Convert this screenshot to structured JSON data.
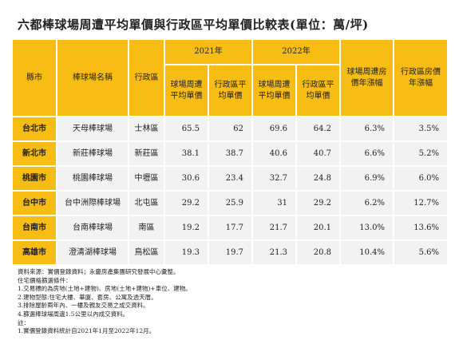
{
  "title": "六都棒球場周遭平均單價與行政區平均單價比較表(單位：萬/坪)",
  "table": {
    "header": {
      "city": "縣市",
      "stadium": "棒球場名稱",
      "district": "行政區",
      "year1": "2021年",
      "year2": "2022年",
      "stadium_growth": "球場周遭房價年漲幅",
      "district_growth": "行政區房價年漲幅",
      "sub": [
        "球場周遭平均單價",
        "行政區平均單價",
        "球場周遭平均單價",
        "行政區平均單價"
      ]
    },
    "rows": [
      [
        "台北市",
        "天母棒球場",
        "士林區",
        "65.5",
        "62",
        "69.6",
        "64.2",
        "6.3%",
        "3.5%"
      ],
      [
        "新北市",
        "新莊棒球場",
        "新莊區",
        "38.1",
        "38.7",
        "40.6",
        "40.7",
        "6.6%",
        "5.2%"
      ],
      [
        "桃園市",
        "桃園棒球場",
        "中壢區",
        "30.6",
        "23.4",
        "32.7",
        "24.8",
        "6.9%",
        "6.0%"
      ],
      [
        "台中市",
        "台中洲際棒球場",
        "北屯區",
        "29.2",
        "25.9",
        "31",
        "29.2",
        "6.2%",
        "12.7%"
      ],
      [
        "台南市",
        "台南棒球場",
        "南區",
        "19.2",
        "17.7",
        "21.7",
        "20.1",
        "13.0%",
        "13.6%"
      ],
      [
        "高雄市",
        "澄清湖棒球場",
        "鳥松區",
        "19.3",
        "19.7",
        "21.3",
        "20.8",
        "10.4%",
        "5.6%"
      ]
    ]
  },
  "notes": [
    "資料來源：實價登錄資料；永慶房產集團研究發展中心彙整。",
    "住宅價格篩選條件：",
    "1.交易標的為房地(土地+建物)、房地(土地+建物)+車位、建物。",
    "2.建物型態:住宅大樓、華廈、套房、公寓及透天厝。",
    "3.排除屋齡兩年內、一樓及親友交易之成交資料。",
    "4.篩選棒球場周邊1.5公里以內成交資料。",
    "註：",
    "1.實價登錄資料統計自2021年1月至2022年12月。"
  ]
}
